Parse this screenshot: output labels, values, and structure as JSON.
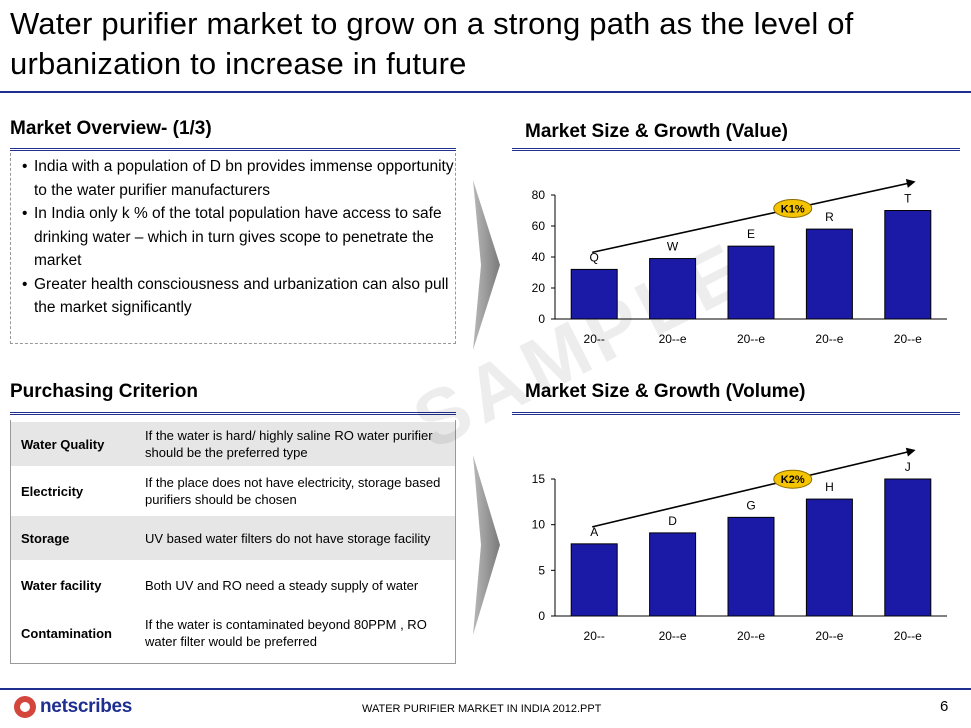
{
  "title": "Water purifier market to grow on a strong path as the level of urbanization to increase in future",
  "overview": {
    "heading": "Market Overview- (1/3)",
    "bullets": [
      "India with a population of D bn provides immense opportunity to the water purifier manufacturers",
      "In India only k % of the total population have access to safe drinking water – which in turn gives scope to penetrate the market",
      "Greater health consciousness and urbanization can also pull the market significantly"
    ]
  },
  "criterion": {
    "heading": "Purchasing Criterion",
    "rows": [
      {
        "label": "Water Quality",
        "desc": "If the water is hard/ highly saline RO water purifier should be the preferred type"
      },
      {
        "label": "Electricity",
        "desc": "If the place does not have electricity, storage based purifiers should be chosen"
      },
      {
        "label": "Storage",
        "desc": "UV based water filters do not have storage facility"
      },
      {
        "label": "Water facility",
        "desc": "Both UV and RO need a steady supply of water"
      },
      {
        "label": "Contamination",
        "desc": "If the water is contaminated beyond 80PPM , RO water filter would be preferred"
      }
    ]
  },
  "chart_data": [
    {
      "type": "bar",
      "title": "Market Size & Growth (Value)",
      "categories": [
        "20--",
        "20--e",
        "20--e",
        "20--e",
        "20--e"
      ],
      "values": [
        32,
        39,
        47,
        58,
        70
      ],
      "data_labels": [
        "Q",
        "W",
        "E",
        "R",
        "T"
      ],
      "ylim": [
        0,
        80
      ],
      "yticks": [
        "0",
        "20",
        "40",
        "60",
        "80"
      ],
      "growth_label": "K1%",
      "bar_color": "#1a1aa6",
      "grid": false
    },
    {
      "type": "bar",
      "title": "Market Size & Growth (Volume)",
      "categories": [
        "20--",
        "20--e",
        "20--e",
        "20--e",
        "20--e"
      ],
      "values": [
        7.9,
        9.1,
        10.8,
        12.8,
        15.0
      ],
      "data_labels": [
        "A",
        "D",
        "G",
        "H",
        "J"
      ],
      "ylim": [
        0,
        15
      ],
      "yticks": [
        "0",
        "5",
        "10",
        "15"
      ],
      "growth_label": "K2%",
      "bar_color": "#1a1aa6",
      "grid": false
    }
  ],
  "watermark": "SAMPLE",
  "footer": {
    "logo_text": "netscribes",
    "center": "WATER PURIFIER  MARKET IN INDIA 2012.PPT",
    "page": "6"
  }
}
